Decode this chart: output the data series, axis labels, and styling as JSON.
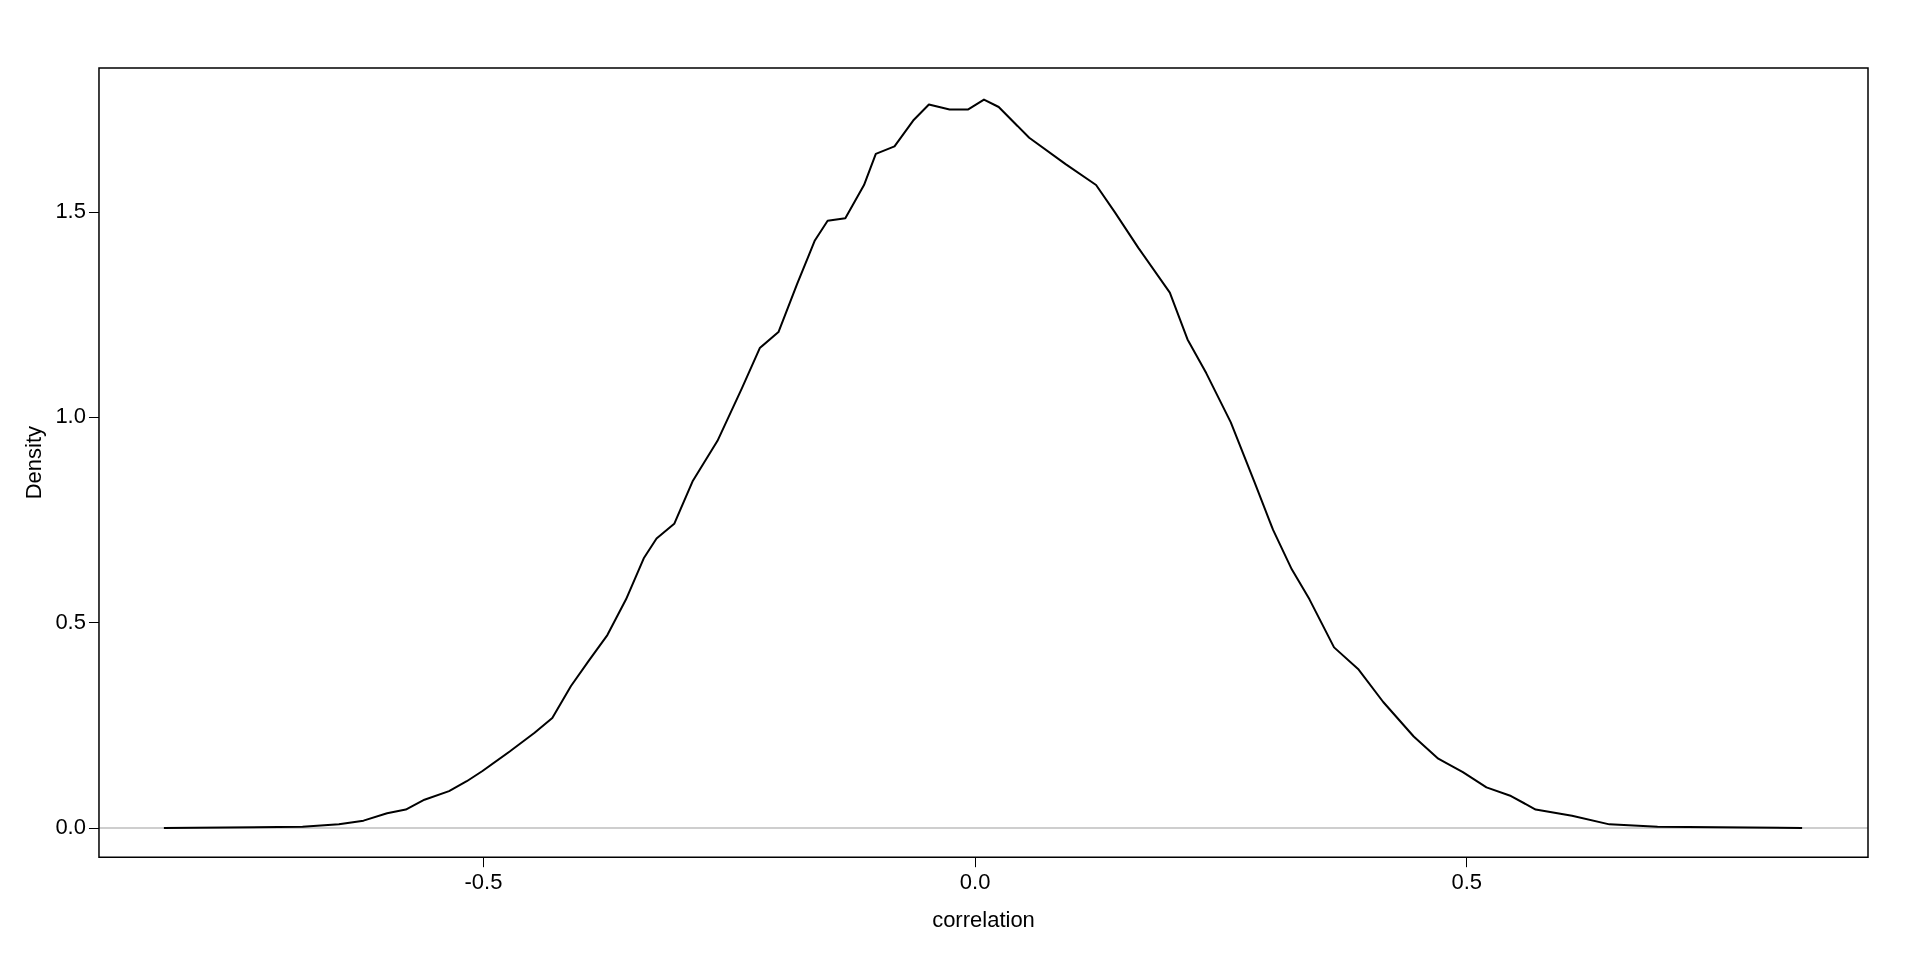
{
  "chart_data": {
    "type": "line",
    "xlabel": "correlation",
    "ylabel": "Density",
    "xlim": [
      -0.891,
      0.908
    ],
    "ylim": [
      -0.071,
      1.851
    ],
    "xticks": [
      {
        "value": -0.5,
        "label": "-0.5"
      },
      {
        "value": 0,
        "label": "0.0"
      },
      {
        "value": 0.5,
        "label": "0.5"
      }
    ],
    "yticks": [
      {
        "value": 0,
        "label": "0.0"
      },
      {
        "value": 0.5,
        "label": "0.5"
      },
      {
        "value": 1,
        "label": "1.0"
      },
      {
        "value": 1.5,
        "label": "1.5"
      }
    ],
    "grid": false,
    "legend": false,
    "marker": "none",
    "line_style": "solid",
    "ref_lines": [
      {
        "axis": "y",
        "value": 0,
        "color": "#bebebe"
      }
    ],
    "series": [
      {
        "color": "#000000",
        "x": [
          -0.825,
          -0.684,
          -0.647,
          -0.622,
          -0.598,
          -0.579,
          -0.56,
          -0.535,
          -0.517,
          -0.501,
          -0.473,
          -0.448,
          -0.43,
          -0.411,
          -0.393,
          -0.374,
          -0.355,
          -0.337,
          -0.324,
          -0.306,
          -0.287,
          -0.262,
          -0.237,
          -0.219,
          -0.2,
          -0.181,
          -0.163,
          -0.15,
          -0.132,
          -0.113,
          -0.101,
          -0.082,
          -0.063,
          -0.047,
          -0.026,
          -0.007,
          0.009,
          0.024,
          0.055,
          0.092,
          0.123,
          0.142,
          0.166,
          0.198,
          0.216,
          0.235,
          0.26,
          0.284,
          0.303,
          0.322,
          0.34,
          0.365,
          0.39,
          0.415,
          0.446,
          0.471,
          0.496,
          0.52,
          0.545,
          0.57,
          0.607,
          0.645,
          0.694,
          0.841
        ],
        "values": [
          0,
          0.003,
          0.009,
          0.018,
          0.036,
          0.045,
          0.069,
          0.09,
          0.114,
          0.139,
          0.187,
          0.232,
          0.268,
          0.346,
          0.407,
          0.47,
          0.557,
          0.657,
          0.705,
          0.741,
          0.846,
          0.943,
          1.072,
          1.169,
          1.208,
          1.325,
          1.431,
          1.479,
          1.485,
          1.566,
          1.642,
          1.66,
          1.723,
          1.762,
          1.75,
          1.75,
          1.774,
          1.756,
          1.681,
          1.617,
          1.566,
          1.5,
          1.413,
          1.304,
          1.19,
          1.108,
          0.988,
          0.843,
          0.726,
          0.63,
          0.557,
          0.44,
          0.386,
          0.307,
          0.223,
          0.169,
          0.136,
          0.099,
          0.078,
          0.045,
          0.03,
          0.009,
          0.003,
          0
        ]
      }
    ]
  }
}
